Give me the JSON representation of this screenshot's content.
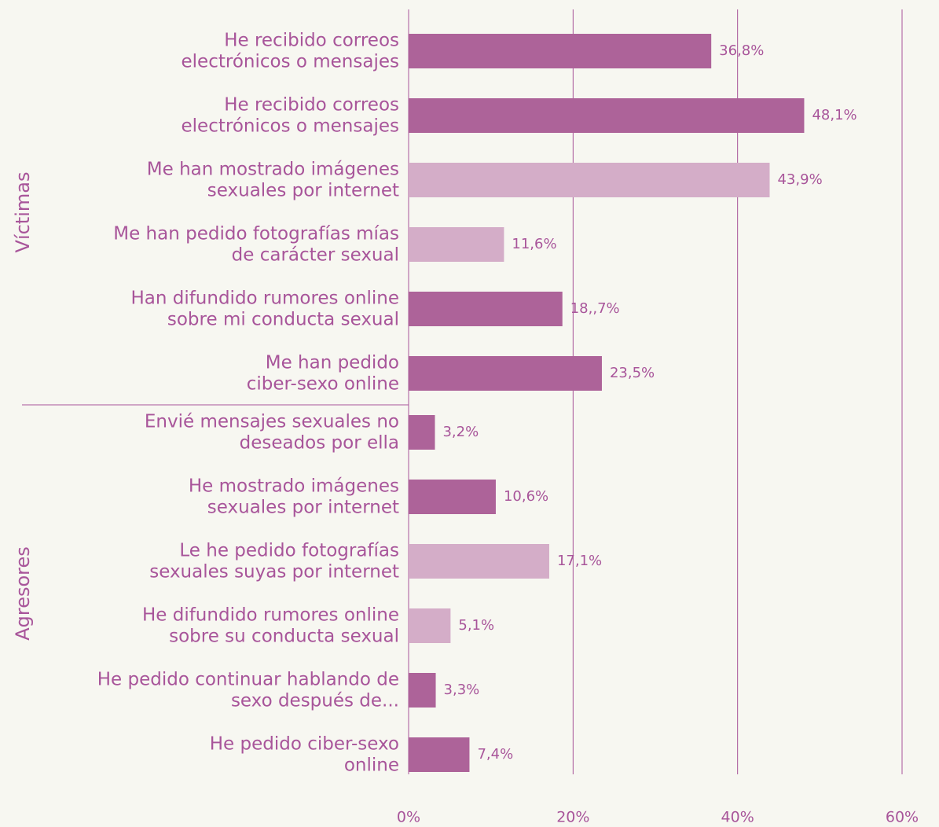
{
  "chart_data": {
    "type": "bar",
    "orientation": "horizontal",
    "groups": [
      {
        "name": "Víctimas",
        "count": 6
      },
      {
        "name": "Agresores",
        "count": 6
      }
    ],
    "categories": [
      [
        "He recibido correos",
        "electrónicos o mensajes"
      ],
      [
        "He recibido correos",
        "electrónicos o mensajes"
      ],
      [
        "Me han mostrado imágenes",
        "sexuales por internet"
      ],
      [
        "Me han pedido fotografías mías",
        "de carácter sexual"
      ],
      [
        "Han difundido rumores online",
        "sobre mi conducta sexual"
      ],
      [
        "Me han pedido",
        "ciber-sexo online"
      ],
      [
        "Envié mensajes sexuales no",
        "deseados por ella"
      ],
      [
        "He mostrado imágenes",
        "sexuales por internet"
      ],
      [
        "Le he pedido fotografías",
        "sexuales suyas por internet"
      ],
      [
        "He difundido rumores online",
        "sobre su conducta sexual"
      ],
      [
        "He pedido continuar hablando de",
        "sexo después de..."
      ],
      [
        "He pedido ciber-sexo",
        "online"
      ]
    ],
    "values": [
      36.8,
      48.1,
      43.9,
      11.6,
      18.7,
      23.5,
      3.2,
      10.6,
      17.1,
      5.1,
      3.3,
      7.4
    ],
    "value_labels": [
      "36,8%",
      "48,1%",
      "43,9%",
      "11,6%",
      "18,,7%",
      "23,5%",
      "3,2%",
      "10,6%",
      "17,1%",
      "5,1%",
      "3,3%",
      "7,4%"
    ],
    "colors": [
      "#ad6399",
      "#ad6399",
      "#d4adc8",
      "#d4adc8",
      "#ad6399",
      "#ad6399",
      "#ad6399",
      "#ad6399",
      "#d4adc8",
      "#d4adc8",
      "#ad6399",
      "#ad6399"
    ],
    "xlim": [
      0,
      60
    ],
    "xticks": [
      {
        "value": 0,
        "label": "0%"
      },
      {
        "value": 20,
        "label": "20%"
      },
      {
        "value": 40,
        "label": "40%"
      },
      {
        "value": 60,
        "label": "60%"
      }
    ],
    "grid": true
  }
}
